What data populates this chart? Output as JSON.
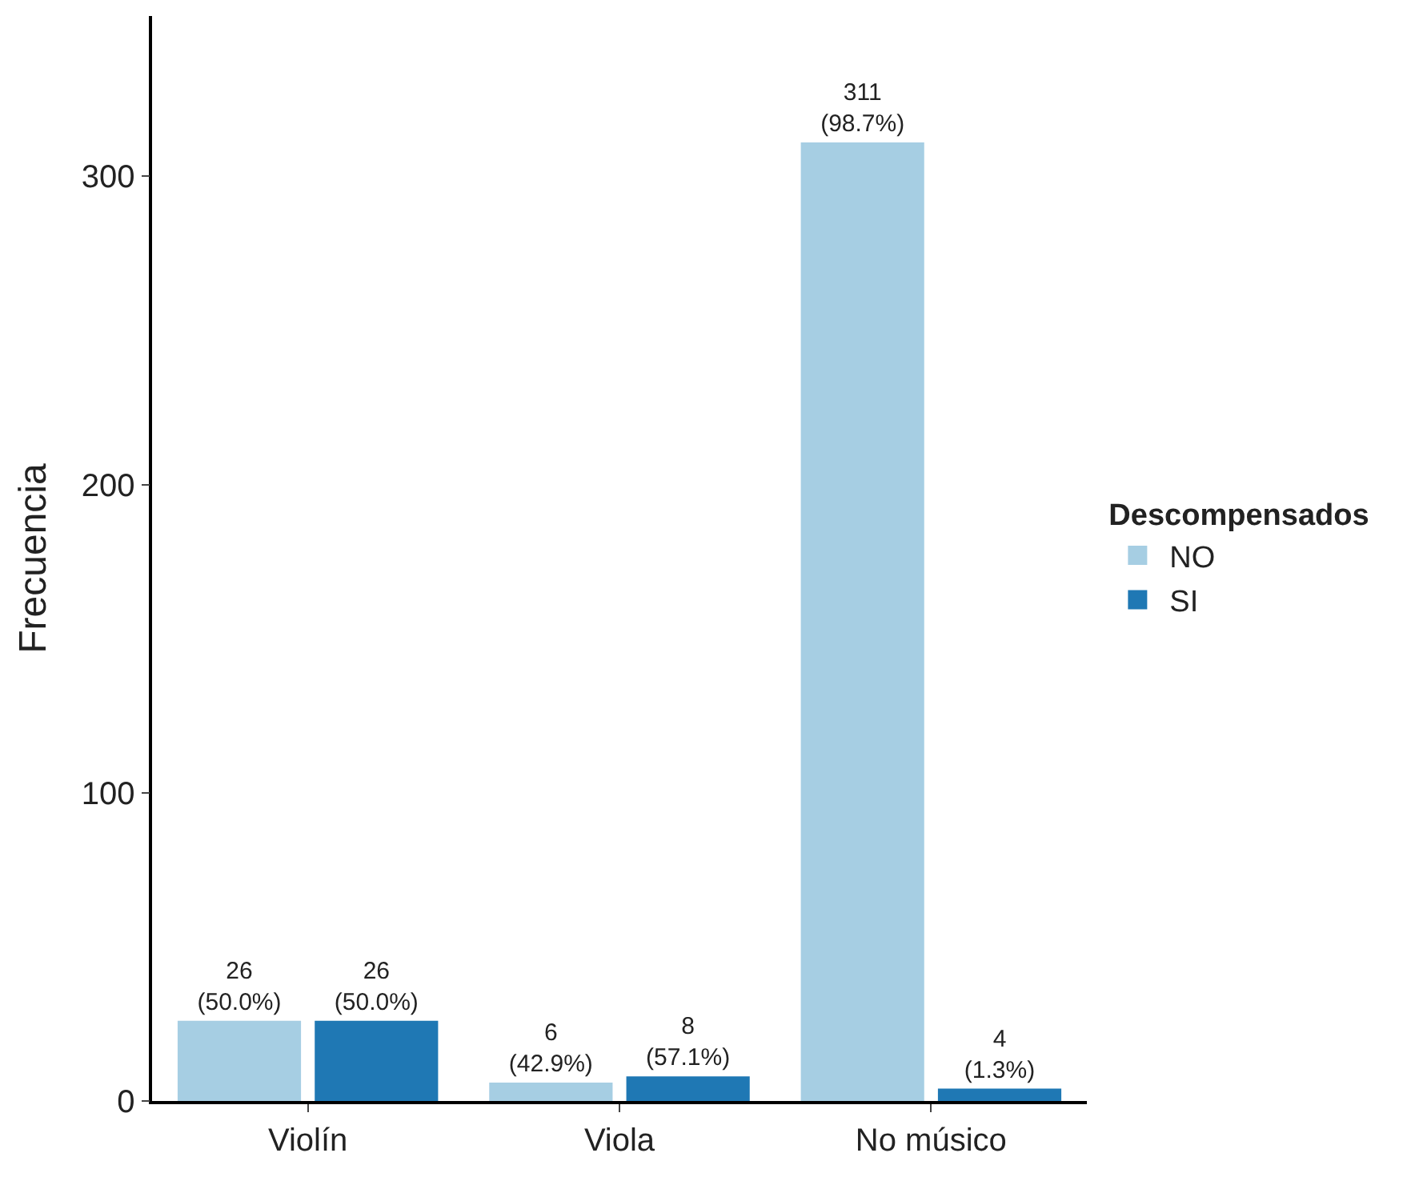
{
  "chart_data": {
    "type": "bar",
    "ylabel": "Frecuencia",
    "legend_title": "Descompensados",
    "categories": [
      "Violín",
      "Viola",
      "No músico"
    ],
    "series": [
      {
        "name": "NO",
        "color": "#a6cee3",
        "values": [
          26,
          6,
          311
        ],
        "value_labels": [
          "26\n(50.0%)",
          "6\n(42.9%)",
          "311\n(98.7%)"
        ]
      },
      {
        "name": "SI",
        "color": "#1f78b4",
        "values": [
          26,
          8,
          4
        ],
        "value_labels": [
          "26\n(50.0%)",
          "8\n(57.1%)",
          "4\n(1.3%)"
        ]
      }
    ],
    "ylim": [
      0,
      352
    ],
    "yticks": [
      0,
      100,
      200,
      300
    ],
    "legend": "right"
  }
}
